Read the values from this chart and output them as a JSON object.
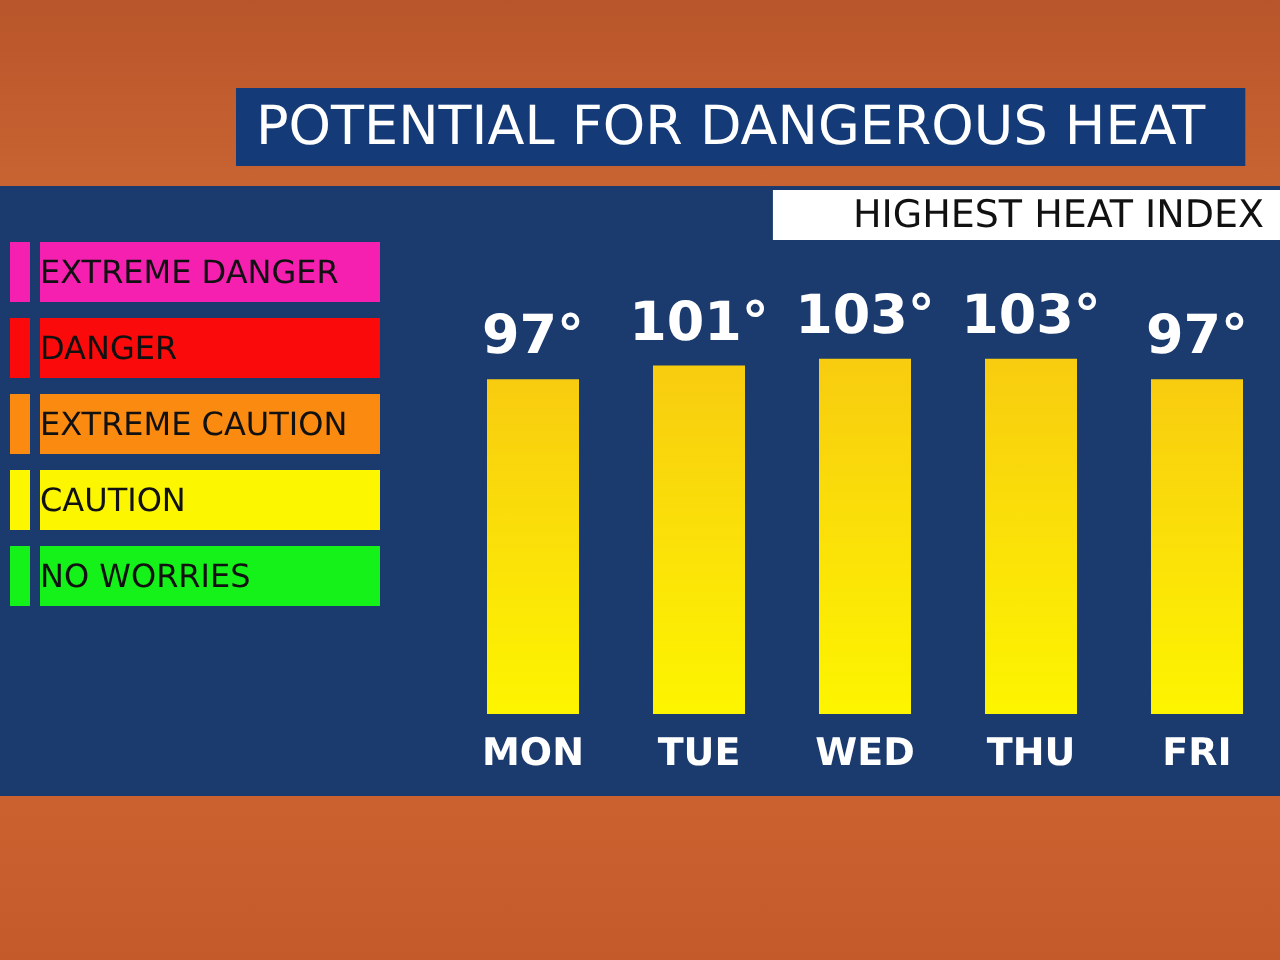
{
  "chart_data": {
    "type": "bar",
    "title": "POTENTIAL FOR DANGEROUS HEAT",
    "subtitle": "HIGHEST HEAT INDEX",
    "categories": [
      "MON",
      "TUE",
      "WED",
      "THU",
      "FRI"
    ],
    "series": [
      {
        "color": "#f8cc10",
        "values": [
          97,
          101,
          103,
          103,
          97
        ],
        "value_labels": [
          "97°",
          "101°",
          "103°",
          "103°",
          "97°"
        ]
      },
      {
        "name": "EXTREME DANGER",
        "color": "#f51fb0",
        "values": [
          null,
          null,
          null,
          null,
          null
        ]
      },
      {
        "name": "DANGER",
        "color": "#fa0a0a",
        "values": [
          null,
          null,
          null,
          null,
          null
        ]
      },
      {
        "name": "EXTREME CAUTION",
        "color": "#fb8a10",
        "values": [
          null,
          null,
          null,
          null,
          null
        ]
      },
      {
        "name": "CAUTION",
        "color": "#fcf600",
        "values": [
          null,
          null,
          null,
          null,
          null
        ]
      },
      {
        "name": "NO WORRIES",
        "color": "#14f21a",
        "values": [
          null,
          null,
          null,
          null,
          null
        ]
      }
    ],
    "legend": "left"
  }
}
